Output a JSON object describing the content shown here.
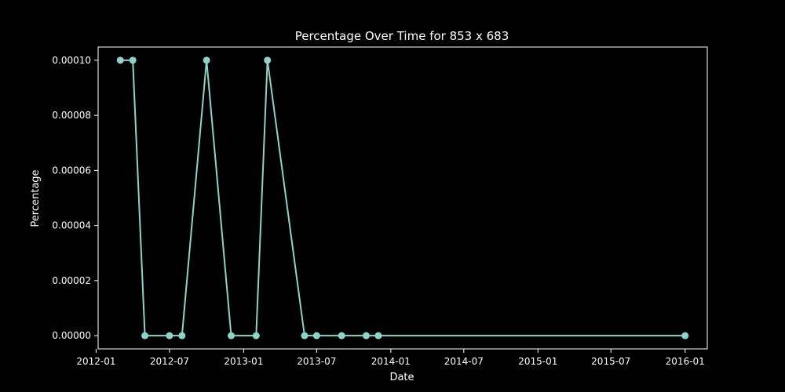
{
  "chart_data": {
    "type": "line",
    "title": "Percentage Over Time for 853 x 683",
    "xlabel": "Date",
    "ylabel": "Percentage",
    "series": [
      {
        "x": [
          "2012-03-01",
          "2012-04-01",
          "2012-05-01",
          "2012-07-01",
          "2012-08-01",
          "2012-10-01",
          "2012-12-01",
          "2013-02-01",
          "2013-03-01",
          "2013-06-01",
          "2013-07-01",
          "2013-09-01",
          "2013-11-01",
          "2013-12-01",
          "2016-01-01"
        ],
        "values": [
          0.0001,
          0.0001,
          0,
          0,
          0,
          0.0001,
          0,
          0,
          0.0001,
          0,
          0,
          0,
          0,
          0,
          0
        ]
      }
    ],
    "x_ticks": [
      "2012-01",
      "2012-07",
      "2013-01",
      "2013-07",
      "2014-01",
      "2014-07",
      "2015-01",
      "2015-07",
      "2016-01"
    ],
    "y_ticks": [
      "0.00000",
      "0.00002",
      "0.00004",
      "0.00006",
      "0.00008",
      "0.00010"
    ],
    "ylim": [
      -4.8e-06,
      0.0001048
    ],
    "xlim": [
      "2012-01-06",
      "2016-02-25"
    ],
    "grid": false,
    "colors": {
      "background": "#000000",
      "line": "#8dd3c7",
      "axes": "#ffffff",
      "text": "#ffffff"
    }
  }
}
